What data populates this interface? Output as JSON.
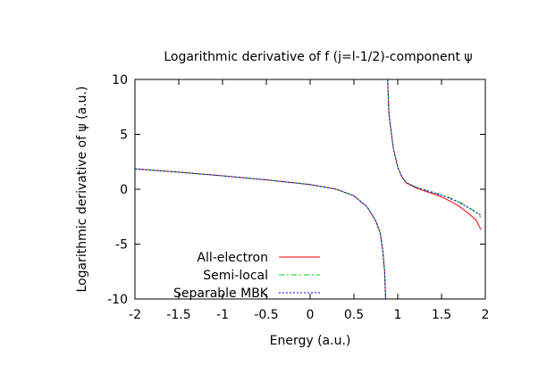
{
  "chart_data": {
    "type": "line",
    "title": "Logarithmic derivative of f (j=l-1/2)-component ψ",
    "xlabel": "Energy (a.u.)",
    "ylabel": "Logarithmic derivative of ψ (a.u.)",
    "xlim": [
      -2,
      2
    ],
    "ylim": [
      -10,
      10
    ],
    "x_ticks": [
      "-2",
      "-1.5",
      "-1",
      "-0.5",
      "0",
      "0.5",
      "1",
      "1.5",
      "2"
    ],
    "y_ticks": [
      "10",
      "5",
      "0",
      "-5",
      "-10"
    ],
    "grid": false,
    "legend_position": "bottom-left",
    "asymptote_x": 0.87,
    "series": [
      {
        "name": "All-electron",
        "color": "#ff0000",
        "dash": "solid",
        "segments": [
          [
            [
              -2.0,
              1.85
            ],
            [
              -1.5,
              1.55
            ],
            [
              -1.0,
              1.22
            ],
            [
              -0.5,
              0.85
            ],
            [
              0.0,
              0.42
            ],
            [
              0.3,
              0.0
            ],
            [
              0.5,
              -0.6
            ],
            [
              0.65,
              -1.6
            ],
            [
              0.75,
              -2.9
            ],
            [
              0.8,
              -4.0
            ],
            [
              0.83,
              -5.6
            ],
            [
              0.85,
              -7.5
            ],
            [
              0.862,
              -10.0
            ]
          ],
          [
            [
              0.885,
              10.0
            ],
            [
              0.9,
              6.8
            ],
            [
              0.95,
              3.7
            ],
            [
              1.0,
              2.0
            ],
            [
              1.05,
              1.1
            ],
            [
              1.1,
              0.55
            ],
            [
              1.2,
              0.15
            ],
            [
              1.3,
              -0.15
            ],
            [
              1.4,
              -0.4
            ],
            [
              1.5,
              -0.7
            ],
            [
              1.6,
              -1.1
            ],
            [
              1.7,
              -1.55
            ],
            [
              1.8,
              -2.15
            ],
            [
              1.9,
              -2.85
            ],
            [
              1.95,
              -3.7
            ]
          ]
        ]
      },
      {
        "name": "Semi-local",
        "color": "#00cc00",
        "dash": "6,3,2,3",
        "segments": [
          [
            [
              -2.0,
              1.85
            ],
            [
              -1.5,
              1.55
            ],
            [
              -1.0,
              1.22
            ],
            [
              -0.5,
              0.85
            ],
            [
              0.0,
              0.42
            ],
            [
              0.3,
              0.0
            ],
            [
              0.5,
              -0.6
            ],
            [
              0.65,
              -1.6
            ],
            [
              0.75,
              -2.9
            ],
            [
              0.8,
              -4.0
            ],
            [
              0.83,
              -5.6
            ],
            [
              0.85,
              -7.5
            ],
            [
              0.862,
              -10.0
            ]
          ],
          [
            [
              0.885,
              10.0
            ],
            [
              0.9,
              6.8
            ],
            [
              0.95,
              3.7
            ],
            [
              1.0,
              2.0
            ],
            [
              1.05,
              1.1
            ],
            [
              1.1,
              0.6
            ],
            [
              1.2,
              0.2
            ],
            [
              1.3,
              -0.05
            ],
            [
              1.4,
              -0.25
            ],
            [
              1.5,
              -0.5
            ],
            [
              1.6,
              -0.8
            ],
            [
              1.7,
              -1.15
            ],
            [
              1.8,
              -1.6
            ],
            [
              1.9,
              -2.1
            ],
            [
              1.95,
              -2.55
            ]
          ]
        ]
      },
      {
        "name": "Separable MBK",
        "color": "#0000ff",
        "dash": "2,2",
        "segments": [
          [
            [
              -2.0,
              1.85
            ],
            [
              -1.5,
              1.55
            ],
            [
              -1.0,
              1.22
            ],
            [
              -0.5,
              0.85
            ],
            [
              0.0,
              0.42
            ],
            [
              0.3,
              0.0
            ],
            [
              0.5,
              -0.6
            ],
            [
              0.65,
              -1.6
            ],
            [
              0.75,
              -2.9
            ],
            [
              0.8,
              -4.0
            ],
            [
              0.83,
              -5.6
            ],
            [
              0.85,
              -7.5
            ],
            [
              0.862,
              -10.0
            ]
          ],
          [
            [
              0.885,
              10.0
            ],
            [
              0.9,
              6.8
            ],
            [
              0.95,
              3.7
            ],
            [
              1.0,
              2.0
            ],
            [
              1.05,
              1.1
            ],
            [
              1.1,
              0.6
            ],
            [
              1.2,
              0.2
            ],
            [
              1.3,
              -0.05
            ],
            [
              1.4,
              -0.3
            ],
            [
              1.5,
              -0.55
            ],
            [
              1.6,
              -0.85
            ],
            [
              1.7,
              -1.2
            ],
            [
              1.8,
              -1.65
            ],
            [
              1.9,
              -2.15
            ],
            [
              1.95,
              -2.35
            ]
          ]
        ]
      }
    ]
  }
}
